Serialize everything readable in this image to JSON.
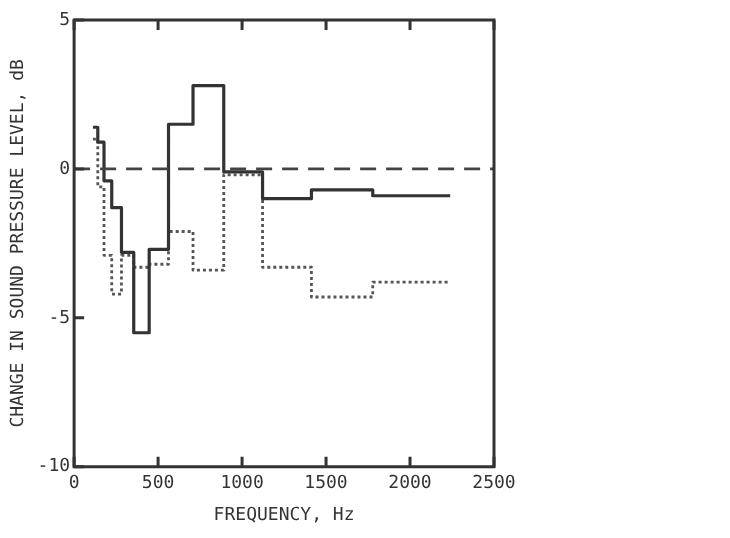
{
  "chart_data": {
    "type": "step",
    "xlabel": "FREQUENCY, Hz",
    "ylabel": "CHANGE IN SOUND PRESSURE LEVEL, dB",
    "xlim": [
      0,
      2500
    ],
    "xticks": [
      0,
      500,
      1000,
      1500,
      2000,
      2500
    ],
    "ylim": [
      -10,
      5
    ],
    "yticks": [
      -10,
      -5,
      0,
      5
    ],
    "grid": false,
    "legend": false,
    "marker": "none",
    "series": [
      {
        "color": "#333333",
        "line_style": "solid",
        "x": [
          112,
          141,
          178,
          224,
          282,
          355,
          447,
          562,
          708,
          891,
          1122,
          1413,
          1778,
          2239
        ],
        "values": [
          1.4,
          0.9,
          -0.4,
          -1.3,
          -2.8,
          -5.5,
          -2.7,
          1.5,
          2.8,
          -0.1,
          -1.0,
          -0.7,
          -0.9,
          -0.9
        ]
      },
      {
        "color": "#555555",
        "line_style": "dotted",
        "x": [
          112,
          141,
          178,
          224,
          282,
          355,
          447,
          562,
          708,
          891,
          1122,
          1413,
          1778,
          2239
        ],
        "values": [
          1.0,
          -0.6,
          -2.9,
          -4.2,
          -2.9,
          -3.3,
          -3.2,
          -2.1,
          -3.4,
          -0.2,
          -3.3,
          -4.3,
          -3.8,
          -3.8
        ]
      }
    ],
    "ref_lines": [
      {
        "axis": "y",
        "value": 0,
        "color": "#444444",
        "line_style": "dashed"
      }
    ]
  }
}
